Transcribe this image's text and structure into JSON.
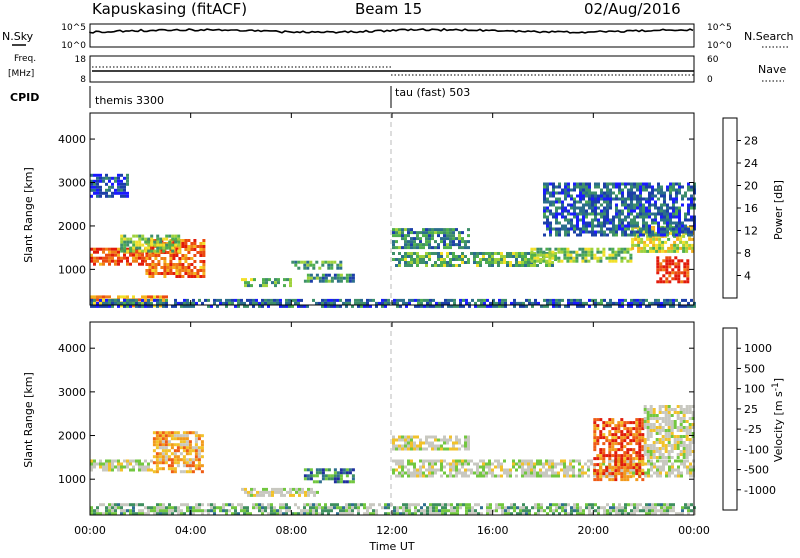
{
  "header": {
    "station": "Kapuskasing (fitACF)",
    "beam": "Beam 15",
    "date": "02/Aug/2016"
  },
  "noise_panel": {
    "left_label": "N.Sky",
    "left_ticks": [
      "10^5",
      "10^0"
    ],
    "right_label": "N.Search",
    "right_ticks": [
      "10^5",
      "10^0"
    ]
  },
  "freq_panel": {
    "left_label_line1": "Freq.",
    "left_label_line2": "[MHz]",
    "left_ticks": [
      "18",
      "8"
    ],
    "right_label": "Nave",
    "right_ticks": [
      "60",
      "0"
    ]
  },
  "cpid_panel": {
    "label": "CPID",
    "modes": [
      {
        "name": "themis 3300",
        "start_hour": 0
      },
      {
        "name": "tau (fast) 503",
        "start_hour": 12
      }
    ]
  },
  "chart_data": [
    {
      "type": "heatmap",
      "title": "",
      "xlabel": "",
      "ylabel": "Slant Range [km]",
      "xlim": [
        0,
        24
      ],
      "ylim": [
        180,
        4600
      ],
      "yticks": [
        "4000",
        "3000",
        "2000",
        "1000"
      ],
      "colorbar": {
        "label": "Power [dB]",
        "ticks": [
          "28",
          "24",
          "20",
          "16",
          "12",
          "8",
          "4"
        ],
        "colors": [
          "#1a1aff",
          "#1c3fa8",
          "#2b6e8c",
          "#3e8f6a",
          "#4fae4f",
          "#9fd23c",
          "#f2e02a",
          "#f5b21e",
          "#f07e16",
          "#eb4a10",
          "#e21a0a"
        ]
      },
      "regions": [
        {
          "t0": 0.0,
          "t1": 2.2,
          "r0": 1150,
          "r1": 1500,
          "level": 0.85
        },
        {
          "t0": 2.2,
          "t1": 4.5,
          "r0": 850,
          "r1": 1700,
          "level": 0.8
        },
        {
          "t0": 1.2,
          "t1": 3.5,
          "r0": 1400,
          "r1": 1800,
          "level": 0.45
        },
        {
          "t0": 0.0,
          "t1": 3.0,
          "r0": 180,
          "r1": 400,
          "level": 0.7
        },
        {
          "t0": 6.0,
          "t1": 8.0,
          "r0": 650,
          "r1": 800,
          "level": 0.4
        },
        {
          "t0": 8.0,
          "t1": 10.0,
          "r0": 1050,
          "r1": 1200,
          "level": 0.35
        },
        {
          "t0": 8.5,
          "t1": 10.5,
          "r0": 750,
          "r1": 900,
          "level": 0.3
        },
        {
          "t0": 12.0,
          "t1": 18.5,
          "r0": 1100,
          "r1": 1400,
          "level": 0.4
        },
        {
          "t0": 12.0,
          "t1": 15.0,
          "r0": 1500,
          "r1": 1950,
          "level": 0.3
        },
        {
          "t0": 17.5,
          "t1": 21.5,
          "r0": 1200,
          "r1": 1500,
          "level": 0.45
        },
        {
          "t0": 21.5,
          "t1": 24.0,
          "r0": 1400,
          "r1": 2000,
          "level": 0.55
        },
        {
          "t0": 22.5,
          "t1": 23.8,
          "r0": 700,
          "r1": 1300,
          "level": 0.9
        },
        {
          "t0": 0.0,
          "t1": 24.0,
          "r0": 180,
          "r1": 320,
          "level": 0.2
        },
        {
          "t0": 0.0,
          "t1": 1.5,
          "r0": 2700,
          "r1": 3200,
          "level": 0.15
        },
        {
          "t0": 18.0,
          "t1": 24.0,
          "r0": 1800,
          "r1": 3000,
          "level": 0.2
        }
      ]
    },
    {
      "type": "heatmap",
      "title": "",
      "xlabel": "Time UT",
      "ylabel": "Slant Range [km]",
      "xlim": [
        0,
        24
      ],
      "ylim": [
        180,
        4600
      ],
      "xticks": [
        "00:00",
        "04:00",
        "08:00",
        "12:00",
        "16:00",
        "20:00",
        "00:00"
      ],
      "yticks": [
        "4000",
        "3000",
        "2000",
        "1000"
      ],
      "colorbar": {
        "label": "Velocity [m s",
        "label_sup": "-1",
        "label_end": "]",
        "ticks": [
          "1000",
          "500",
          "100",
          "25",
          "-25",
          "-100",
          "-500",
          "-1000"
        ],
        "colors": [
          "#1f2f9e",
          "#2f6f8f",
          "#3f8f5f",
          "#72c73f",
          "#c8c8c0",
          "#c8c8c0",
          "#f2c22a",
          "#f29a1c",
          "#ef5c14",
          "#e01a0a"
        ]
      },
      "regions": [
        {
          "t0": 0.0,
          "t1": 2.5,
          "r0": 1200,
          "r1": 1450,
          "level": 0.5
        },
        {
          "t0": 2.5,
          "t1": 4.5,
          "r0": 1200,
          "r1": 2100,
          "level": 0.7
        },
        {
          "t0": 0.0,
          "t1": 24.0,
          "r0": 180,
          "r1": 450,
          "level": 0.35
        },
        {
          "t0": 8.5,
          "t1": 10.5,
          "r0": 950,
          "r1": 1250,
          "level": 0.2
        },
        {
          "t0": 6.0,
          "t1": 9.0,
          "r0": 650,
          "r1": 800,
          "level": 0.5
        },
        {
          "t0": 12.0,
          "t1": 24.0,
          "r0": 1100,
          "r1": 1450,
          "level": 0.5
        },
        {
          "t0": 12.0,
          "t1": 15.0,
          "r0": 1700,
          "r1": 2000,
          "level": 0.5
        },
        {
          "t0": 20.0,
          "t1": 22.0,
          "r0": 1000,
          "r1": 2400,
          "level": 0.85
        },
        {
          "t0": 22.0,
          "t1": 24.0,
          "r0": 1500,
          "r1": 2700,
          "level": 0.5
        }
      ]
    }
  ]
}
